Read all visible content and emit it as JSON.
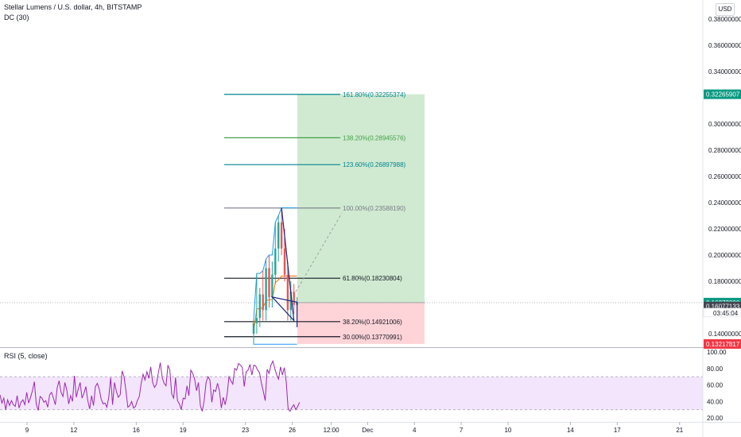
{
  "header": {
    "title": "Stellar Lumens / U.S. dollar, 4h, BITSTAMP",
    "indicator": "DC (30)",
    "currency_button": "USD"
  },
  "rsi": {
    "label": "RSI (5, close)",
    "upper_band": 70,
    "lower_band": 30,
    "color": "#9c27b0",
    "band_fill": "#f3e5fc"
  },
  "chart_data": [
    {
      "type": "line",
      "panel": "price",
      "ylim": [
        0.12,
        0.39
      ],
      "yticks": [
        {
          "value": 0.38,
          "label": "0.38000000"
        },
        {
          "value": 0.36,
          "label": "0.36000000"
        },
        {
          "value": 0.34,
          "label": "0.34000000"
        },
        {
          "value": 0.3,
          "label": "0.30000000"
        },
        {
          "value": 0.28,
          "label": "0.28000000"
        },
        {
          "value": 0.26,
          "label": "0.26000000"
        },
        {
          "value": 0.24,
          "label": "0.24000000"
        },
        {
          "value": 0.22,
          "label": "0.22000000"
        },
        {
          "value": 0.2,
          "label": "0.20000000"
        },
        {
          "value": 0.18,
          "label": "0.18000000"
        },
        {
          "value": 0.14,
          "label": "0.14000000"
        }
      ],
      "price_tags": [
        {
          "value": 0.32265907,
          "label": "0.32265907",
          "color": "#089981"
        },
        {
          "value": 0.16372,
          "label": "0.16372000",
          "color": "#089981"
        },
        {
          "value": 0.16077133,
          "label": "0.16077133",
          "color": "#434651"
        },
        {
          "value": 0.13217817,
          "label": "0.13217817",
          "color": "#f23645"
        }
      ],
      "countdown": "03:45:04",
      "fib_levels": [
        {
          "value": 0.32255374,
          "label": "161.80%(0.32255374)",
          "color": "#00838f"
        },
        {
          "value": 0.28945576,
          "label": "138.20%(0.28945576)",
          "color": "#43a047"
        },
        {
          "value": 0.26897988,
          "label": "123.60%(0.26897988)",
          "color": "#00838f"
        },
        {
          "value": 0.2358819,
          "label": "100.00%(0.23588190)",
          "color": "#787b86"
        },
        {
          "value": 0.18230804,
          "label": "61.80%(0.18230804)",
          "color": "#131722"
        },
        {
          "value": 0.14921006,
          "label": "38.20%(0.14921006)",
          "color": "#131722"
        },
        {
          "value": 0.13770991,
          "label": "30.00%(0.13770991)",
          "color": "#131722"
        }
      ],
      "long_position": {
        "entry": 0.16372,
        "target": 0.32265907,
        "stop": 0.13217817
      },
      "candles": [
        {
          "o": 0.14,
          "h": 0.15,
          "l": 0.132,
          "c": 0.148
        },
        {
          "o": 0.148,
          "h": 0.186,
          "l": 0.14,
          "c": 0.152
        },
        {
          "o": 0.152,
          "h": 0.175,
          "l": 0.145,
          "c": 0.17
        },
        {
          "o": 0.17,
          "h": 0.188,
          "l": 0.15,
          "c": 0.158
        },
        {
          "o": 0.158,
          "h": 0.197,
          "l": 0.15,
          "c": 0.19
        },
        {
          "o": 0.19,
          "h": 0.2,
          "l": 0.16,
          "c": 0.168
        },
        {
          "o": 0.168,
          "h": 0.195,
          "l": 0.16,
          "c": 0.185
        },
        {
          "o": 0.185,
          "h": 0.225,
          "l": 0.178,
          "c": 0.205
        },
        {
          "o": 0.205,
          "h": 0.23,
          "l": 0.195,
          "c": 0.225
        },
        {
          "o": 0.225,
          "h": 0.236,
          "l": 0.2,
          "c": 0.205
        },
        {
          "o": 0.205,
          "h": 0.22,
          "l": 0.18,
          "c": 0.185
        },
        {
          "o": 0.185,
          "h": 0.195,
          "l": 0.15,
          "c": 0.158
        },
        {
          "o": 0.158,
          "h": 0.18,
          "l": 0.15,
          "c": 0.172
        },
        {
          "o": 0.172,
          "h": 0.178,
          "l": 0.155,
          "c": 0.162
        },
        {
          "o": 0.162,
          "h": 0.168,
          "l": 0.155,
          "c": 0.164
        }
      ],
      "donchian": {
        "upper": [
          0.15,
          0.186,
          0.186,
          0.188,
          0.197,
          0.2,
          0.2,
          0.225,
          0.23,
          0.236,
          0.236,
          0.236,
          0.236,
          0.236,
          0.236
        ],
        "middle": [
          0.141,
          0.159,
          0.159,
          0.16,
          0.165,
          0.166,
          0.166,
          0.179,
          0.181,
          0.184,
          0.184,
          0.184,
          0.184,
          0.184,
          0.184
        ],
        "lower": [
          0.132,
          0.132,
          0.132,
          0.132,
          0.132,
          0.132,
          0.132,
          0.132,
          0.132,
          0.132,
          0.132,
          0.132,
          0.132,
          0.132,
          0.132
        ]
      },
      "pattern_path": [
        {
          "i": 9,
          "v": 0.236
        },
        {
          "i": 13,
          "v": 0.15
        },
        {
          "i": 6,
          "v": 0.168
        },
        {
          "i": 14,
          "v": 0.164
        },
        {
          "i": 14,
          "v": 0.145
        }
      ]
    },
    {
      "type": "line",
      "panel": "rsi",
      "ylim": [
        20,
        100
      ],
      "yticks": [
        {
          "value": 100,
          "label": "100.00"
        },
        {
          "value": 80,
          "label": "80.00"
        },
        {
          "value": 60,
          "label": "60.00"
        },
        {
          "value": 40,
          "label": "40.00"
        },
        {
          "value": 20,
          "label": "20.00"
        }
      ],
      "values": [
        48,
        38,
        44,
        30,
        42,
        35,
        41,
        36,
        34,
        47,
        32,
        39,
        42,
        36,
        51,
        38,
        45,
        53,
        64,
        37,
        29,
        46,
        44,
        39,
        41,
        33,
        48,
        51,
        44,
        36,
        57,
        65,
        51,
        46,
        63,
        54,
        37,
        47,
        40,
        71,
        45,
        55,
        63,
        44,
        50,
        58,
        41,
        31,
        47,
        35,
        58,
        62,
        55,
        43,
        37,
        38,
        33,
        45,
        69,
        36,
        63,
        52,
        45,
        48,
        77,
        70,
        53,
        33,
        35,
        40,
        32,
        34,
        41,
        46,
        62,
        73,
        66,
        76,
        68,
        82,
        63,
        57,
        61,
        75,
        87,
        69,
        62,
        59,
        84,
        78,
        49,
        44,
        69,
        41,
        37,
        30,
        44,
        43,
        59,
        47,
        78,
        74,
        67,
        53,
        63,
        35,
        28,
        41,
        63,
        70,
        66,
        39,
        54,
        52,
        62,
        53,
        32,
        45,
        36,
        48,
        70,
        65,
        61,
        80,
        78,
        86,
        84,
        81,
        58,
        76,
        78,
        85,
        72,
        84,
        83,
        78,
        75,
        62,
        52,
        41,
        79,
        74,
        84,
        89,
        80,
        72,
        67,
        82,
        72,
        81,
        64,
        31,
        28,
        33,
        36,
        30,
        34,
        39
      ],
      "title": "RSI (5, close)"
    }
  ],
  "x_axis": {
    "ticks": [
      {
        "idx": 0,
        "label": "9"
      },
      {
        "idx": 18,
        "label": "12"
      },
      {
        "idx": 42,
        "label": "16"
      },
      {
        "idx": 60,
        "label": "19"
      },
      {
        "idx": 84,
        "label": "23"
      },
      {
        "idx": 102,
        "label": "26"
      },
      {
        "idx": 117,
        "label": "12:00"
      },
      {
        "idx": 131,
        "label": "Dec"
      },
      {
        "idx": 149,
        "label": "4"
      },
      {
        "idx": 167,
        "label": "7"
      },
      {
        "idx": 185,
        "label": "10"
      },
      {
        "idx": 209,
        "label": "14"
      },
      {
        "idx": 227,
        "label": "17"
      },
      {
        "idx": 251,
        "label": "21"
      }
    ]
  }
}
